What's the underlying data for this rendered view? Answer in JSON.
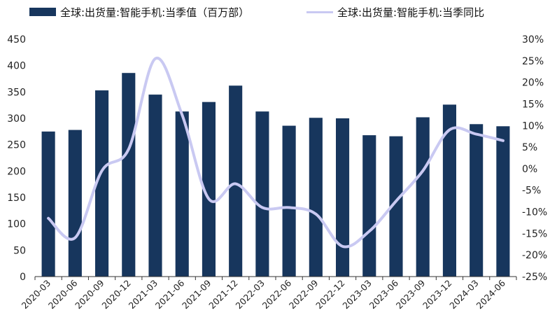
{
  "legend": {
    "bar_label": "全球:出货量:智能手机:当季值（百万部）",
    "line_label": "全球:出货量:智能手机:当季同比"
  },
  "colors": {
    "bar": "#17365d",
    "line": "#c9c9f2",
    "axis": "#333333",
    "tick_text": "#222222"
  },
  "chart_data": {
    "type": "bar",
    "categories": [
      "2020-03",
      "2020-06",
      "2020-09",
      "2020-12",
      "2021-03",
      "2021-06",
      "2021-09",
      "2021-12",
      "2022-03",
      "2022-06",
      "2022-09",
      "2022-12",
      "2023-03",
      "2023-06",
      "2023-09",
      "2023-12",
      "2024-03",
      "2024-06"
    ],
    "series": [
      {
        "name": "全球:出货量:智能手机:当季值（百万部）",
        "type": "bar",
        "axis": "left",
        "values": [
          275,
          278,
          353,
          386,
          345,
          313,
          331,
          362,
          313,
          286,
          301,
          300,
          268,
          266,
          302,
          326,
          289,
          285
        ]
      },
      {
        "name": "全球:出货量:智能手机:当季同比",
        "type": "line",
        "axis": "right",
        "unit": "%",
        "values": [
          -11.5,
          -16.0,
          -0.5,
          4.5,
          25.5,
          12.5,
          -7.0,
          -3.5,
          -9.0,
          -9.0,
          -10.5,
          -18.0,
          -14.5,
          -7.5,
          -0.5,
          9.0,
          8.0,
          6.5
        ]
      }
    ],
    "y_left": {
      "min": 0,
      "max": 450,
      "ticks": [
        "0",
        "50",
        "100",
        "150",
        "200",
        "250",
        "300",
        "350",
        "400",
        "450"
      ]
    },
    "y_right": {
      "min": -25,
      "max": 30,
      "ticks": [
        "-25%",
        "-20%",
        "-15%",
        "-10%",
        "-5%",
        "0%",
        "5%",
        "10%",
        "15%",
        "20%",
        "25%",
        "30%"
      ]
    },
    "grid": false,
    "legend_position": "top"
  }
}
